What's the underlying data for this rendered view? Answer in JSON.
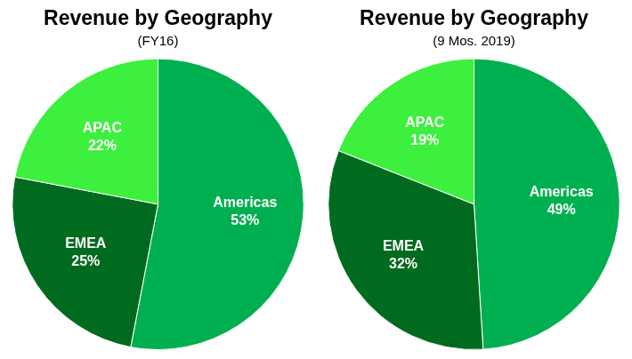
{
  "chart_data": [
    {
      "type": "pie",
      "title": "Revenue by Geography",
      "subtitle": "(FY16)",
      "categories": [
        "Americas",
        "EMEA",
        "APAC"
      ],
      "values": [
        53,
        25,
        22
      ],
      "value_labels": [
        "53%",
        "25%",
        "22%"
      ],
      "colors": [
        "#00b050",
        "#006b1e",
        "#3df03d"
      ],
      "data_labels": true
    },
    {
      "type": "pie",
      "title": "Revenue by Geography",
      "subtitle": "(9 Mos. 2019)",
      "categories": [
        "Americas",
        "EMEA",
        "APAC"
      ],
      "values": [
        49,
        32,
        19
      ],
      "value_labels": [
        "49%",
        "32%",
        "19%"
      ],
      "colors": [
        "#00b050",
        "#006b1e",
        "#3df03d"
      ],
      "data_labels": true
    }
  ]
}
